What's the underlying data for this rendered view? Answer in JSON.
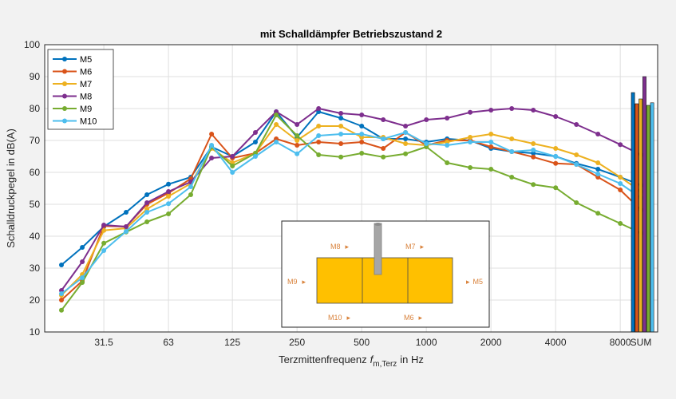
{
  "chart_data": {
    "type": "line",
    "title": "mit Schalldämpfer Betriebszustand 2",
    "xlabel": "Terzmittenfrequenz",
    "xlabel_symbol": "f",
    "xlabel_subscript": "m,Terz",
    "xlabel_unit": "in Hz",
    "ylabel": "Schalldruckpegel in dB(A)",
    "ylim": [
      10,
      100
    ],
    "yticks": [
      "10",
      "20",
      "30",
      "40",
      "50",
      "60",
      "70",
      "80",
      "90",
      "100"
    ],
    "xscale": "log",
    "xticks": [
      "31.5",
      "63",
      "125",
      "250",
      "500",
      "1000",
      "2000",
      "4000",
      "8000"
    ],
    "sum_label": "SUM",
    "grid": true,
    "legend_position": "top-left",
    "x": [
      20,
      25,
      31.5,
      40,
      50,
      63,
      80,
      100,
      125,
      160,
      200,
      250,
      315,
      400,
      500,
      630,
      800,
      1000,
      1250,
      1600,
      2000,
      2500,
      3150,
      4000,
      5000,
      6300,
      8000,
      10000
    ],
    "series": [
      {
        "name": "M5",
        "color": "#0072bd",
        "values": [
          31,
          36.5,
          43,
          47.5,
          53,
          56.3,
          58.5,
          68,
          65,
          69.5,
          79,
          71,
          79,
          77,
          74.5,
          70.5,
          70.5,
          69.5,
          70.5,
          70,
          67.5,
          66.5,
          66,
          65,
          62.8,
          61,
          58.5,
          56
        ],
        "sum": 85
      },
      {
        "name": "M6",
        "color": "#d95319",
        "values": [
          20,
          26,
          43.2,
          43,
          50,
          53.5,
          58,
          72,
          64.5,
          66,
          70.5,
          68.5,
          69.5,
          69,
          69.5,
          67.5,
          72.5,
          68.5,
          70,
          70,
          68,
          66.5,
          64.8,
          62.8,
          62.5,
          58.5,
          54.5,
          48.2
        ],
        "sum": 81.5
      },
      {
        "name": "M7",
        "color": "#edb120",
        "values": [
          21.5,
          28,
          41.8,
          42.5,
          48.5,
          52.5,
          56.5,
          67.5,
          63,
          66,
          75,
          70,
          74.5,
          74.5,
          71,
          71,
          69,
          68.5,
          69.5,
          71,
          72,
          70.5,
          69,
          67.5,
          65.5,
          63,
          58.5,
          54
        ],
        "sum": 83
      },
      {
        "name": "M8",
        "color": "#7e2f8e",
        "values": [
          23,
          32,
          43.5,
          43,
          50.5,
          54,
          57,
          64.5,
          65,
          72.5,
          79,
          75,
          80,
          78.5,
          78,
          76.5,
          74.5,
          76.5,
          77,
          78.8,
          79.5,
          80,
          79.5,
          77.5,
          75,
          72,
          68.7,
          65.5
        ],
        "sum": 90
      },
      {
        "name": "M9",
        "color": "#77ac30",
        "values": [
          16.8,
          25.5,
          37.8,
          41.3,
          44.5,
          47,
          53,
          68,
          62,
          66,
          78,
          71.5,
          65.5,
          64.8,
          66,
          64.8,
          65.8,
          68,
          63,
          61.5,
          61,
          58.5,
          56.2,
          55.2,
          50.5,
          47.2,
          44,
          41
        ],
        "sum": 81
      },
      {
        "name": "M10",
        "color": "#4dbeee",
        "values": [
          22,
          27,
          35.5,
          41.5,
          47.5,
          50.2,
          55.5,
          68.5,
          60,
          65,
          69.5,
          65.8,
          71.5,
          72,
          72,
          70.5,
          72.5,
          69,
          68.5,
          69.5,
          69.5,
          66.5,
          67,
          65,
          62.5,
          59.5,
          56.5,
          52
        ],
        "sum": 81.8
      }
    ]
  },
  "inset": {
    "labels": {
      "m8": "M8",
      "m7": "M7",
      "m9": "M9",
      "m5": "M5",
      "m10": "M10",
      "m6": "M6"
    },
    "arrow": "▸",
    "box_color": "#ffc000"
  }
}
